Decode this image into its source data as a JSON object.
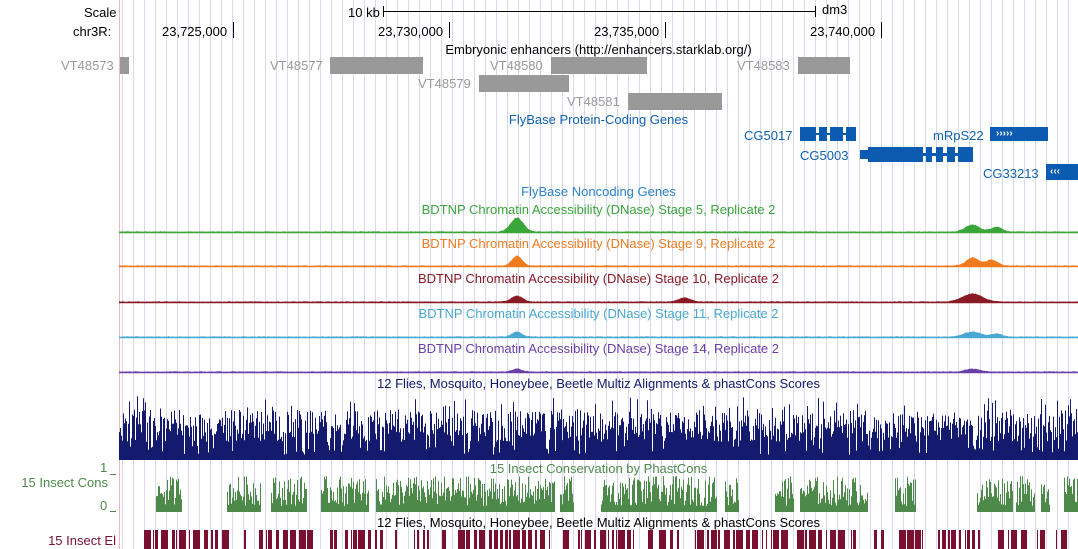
{
  "ruler": {
    "scale_label": "Scale",
    "chrom_label": "chr3R:",
    "scale_bar_text": "10 kb",
    "assembly": "dm3",
    "positions": [
      "23,725,000",
      "23,730,000",
      "23,735,000",
      "23,740,000"
    ]
  },
  "tracks": {
    "enhancers": {
      "title": "Embryonic enhancers (http://enhancers.starklab.org/)",
      "items": [
        "VT48573",
        "VT48577",
        "VT48580",
        "VT48583",
        "VT48579",
        "VT48581"
      ]
    },
    "protein_genes": {
      "title": "FlyBase Protein-Coding Genes",
      "items": [
        "CG5017",
        "mRpS22",
        "CG5003",
        "CG33213"
      ]
    },
    "noncoding": {
      "title": "FlyBase Noncoding Genes"
    },
    "dnase": [
      {
        "title": "BDTNP Chromatin Accessibility (DNase) Stage 5, Replicate 2",
        "color": "#3aa63a"
      },
      {
        "title": "BDTNP Chromatin Accessibility (DNase) Stage 9, Replicate 2",
        "color": "#f07a1e"
      },
      {
        "title": "BDTNP Chromatin Accessibility (DNase) Stage 10, Replicate 2",
        "color": "#8a1a24"
      },
      {
        "title": "BDTNP Chromatin Accessibility (DNase) Stage 11, Replicate 2",
        "color": "#48a8d0"
      },
      {
        "title": "BDTNP Chromatin Accessibility (DNase) Stage 14, Replicate 2",
        "color": "#6a3fa8"
      }
    ],
    "multiz": {
      "title": "12 Flies, Mosquito, Honeybee, Beetle Multiz Alignments & phastCons Scores",
      "color": "#141a6e"
    },
    "phastcons": {
      "title": "15 Insect Conservation by PhastCons",
      "side_label": "15 Insect Cons",
      "axis_top": "1",
      "axis_bottom": "0",
      "color": "#4d8a4a"
    },
    "elements": {
      "title": "12 Flies, Mosquito, Honeybee, Beetle Multiz Alignments & phastCons Scores",
      "side_label": "15 Insect El",
      "color": "#7a1030"
    }
  },
  "colors": {
    "gene": "#0b5cb0",
    "gene_label": "#0f61b3",
    "enhancer": "#999999",
    "grid": "#d8d8f4"
  }
}
